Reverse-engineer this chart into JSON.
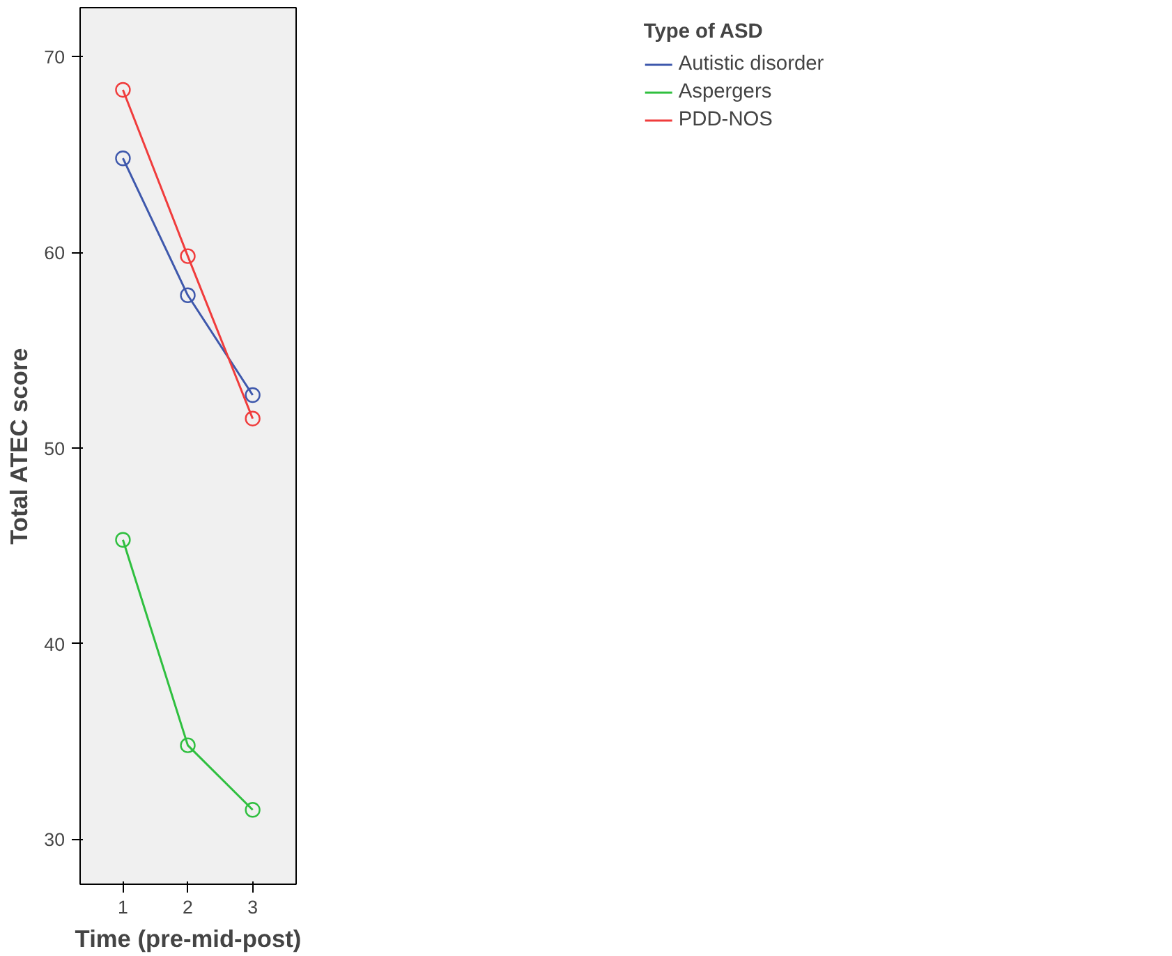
{
  "chart_data": {
    "type": "line",
    "xlabel": "Time (pre-mid-post)",
    "ylabel": "Total ATEC score",
    "legend_title": "Type of ASD",
    "x": [
      1,
      2,
      3
    ],
    "series": [
      {
        "name": "Autistic disorder",
        "color": "#3e58ac",
        "values": [
          64.8,
          57.8,
          52.7
        ]
      },
      {
        "name": "Aspergers",
        "color": "#2fbf3f",
        "values": [
          45.3,
          34.8,
          31.5
        ]
      },
      {
        "name": "PDD-NOS",
        "color": "#f03c3c",
        "values": [
          68.3,
          59.8,
          51.5
        ]
      }
    ],
    "xlim": [
      0.34,
      3.67
    ],
    "ylim": [
      27.7,
      72.5
    ],
    "xticks": [
      1,
      2,
      3
    ],
    "yticks": [
      30,
      40,
      50,
      60,
      70
    ],
    "grid": false,
    "legend": "top right",
    "marker": "circle",
    "line_style": "solid"
  }
}
